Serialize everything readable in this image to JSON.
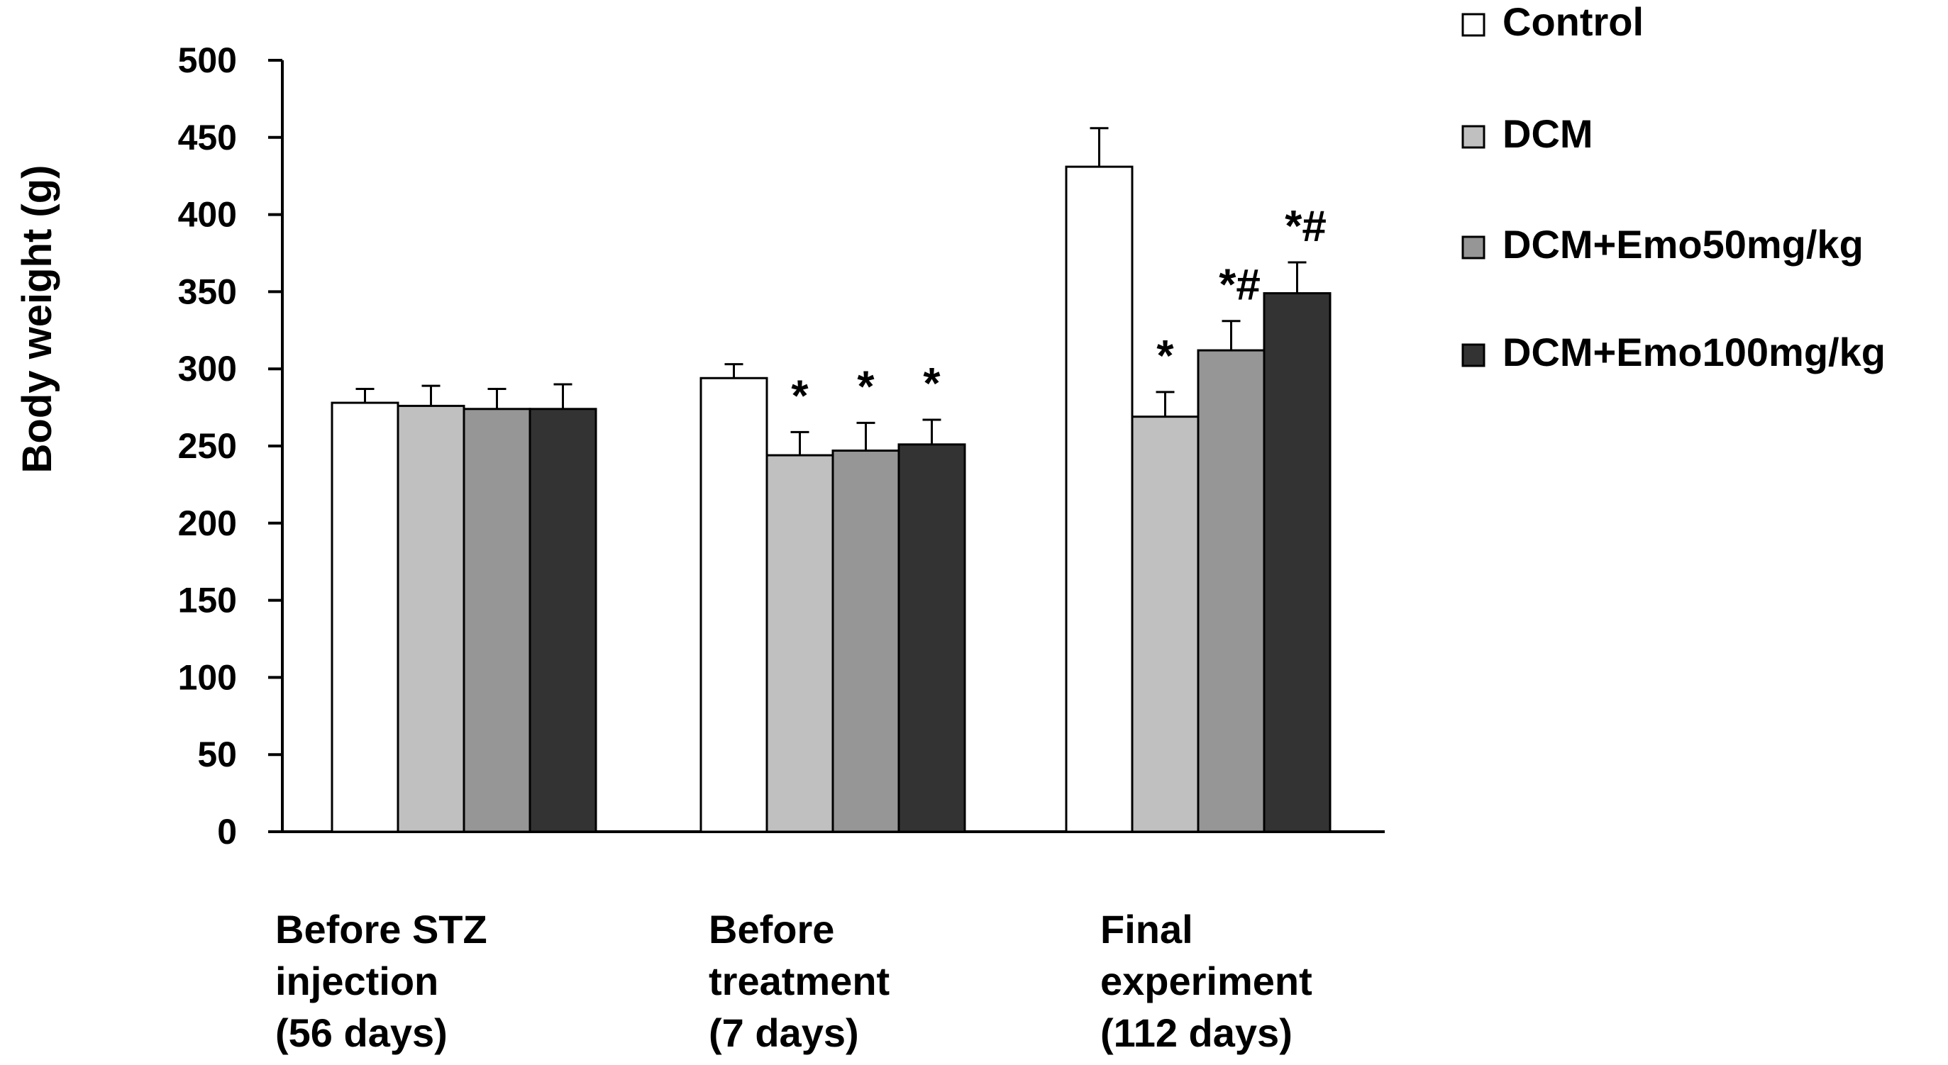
{
  "chart_data": {
    "type": "bar",
    "title": "",
    "xlabel": "",
    "ylabel": "Body weight (g)",
    "ylim": [
      0,
      500
    ],
    "yticks": [
      "0",
      "50",
      "100",
      "150",
      "200",
      "250",
      "300",
      "350",
      "400",
      "450",
      "500"
    ],
    "categories": [
      [
        "Before STZ",
        "injection",
        "(56 days)"
      ],
      [
        "Before",
        "treatment",
        "(7 days)"
      ],
      [
        "Final",
        "experiment",
        "(112 days)"
      ]
    ],
    "series": [
      {
        "name": "Control",
        "color": "#ffffff",
        "values": [
          278,
          294,
          431
        ],
        "errors": [
          9,
          9,
          25
        ],
        "marks": [
          "",
          "",
          ""
        ]
      },
      {
        "name": "DCM",
        "color": "#c0c0c0",
        "values": [
          276,
          244,
          269
        ],
        "errors": [
          13,
          15,
          16
        ],
        "marks": [
          "",
          "*",
          "*"
        ]
      },
      {
        "name": "DCM+Emo50mg/kg",
        "color": "#969696",
        "values": [
          274,
          247,
          312
        ],
        "errors": [
          13,
          18,
          19
        ],
        "marks": [
          "",
          "*",
          "*#"
        ]
      },
      {
        "name": "DCM+Emo100mg/kg",
        "color": "#333333",
        "values": [
          274,
          251,
          349
        ],
        "errors": [
          16,
          16,
          20
        ],
        "marks": [
          "",
          "*",
          "*#"
        ]
      }
    ],
    "legend_position": "top-right"
  }
}
